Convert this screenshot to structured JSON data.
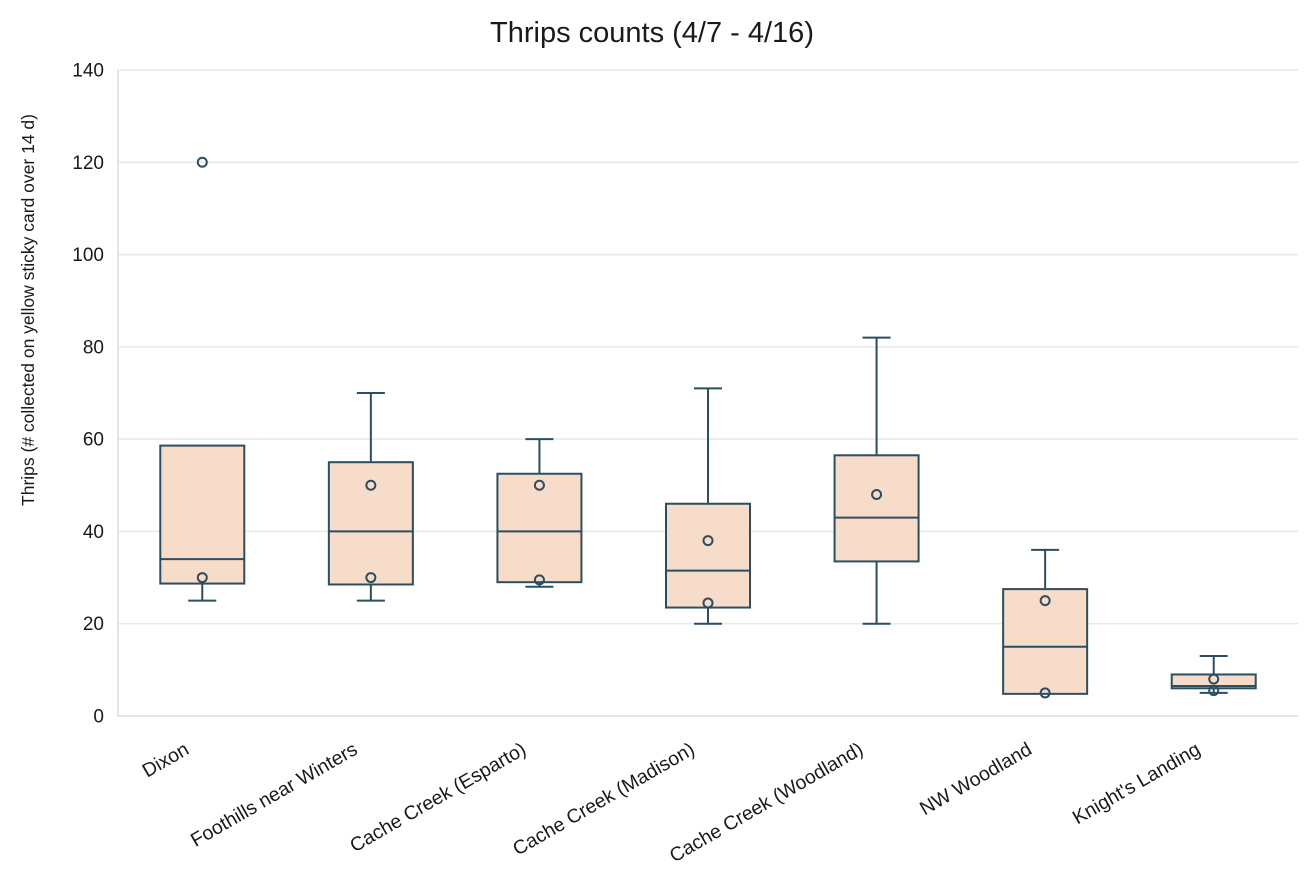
{
  "chart_data": {
    "type": "box",
    "title": "Thrips counts (4/7 - 4/16)",
    "ylabel": "Thrips (# collected on yellow sticky card over 14 d)",
    "xlabel": "",
    "ylim": [
      0,
      140
    ],
    "yticks": [
      0,
      20,
      40,
      60,
      80,
      100,
      120,
      140
    ],
    "grid": "horizontal",
    "legend": "none",
    "categories": [
      "Dixon",
      "Foothills near Winters",
      "Cache Creek (Esparto)",
      "Cache Creek (Madison)",
      "Cache Creek (Woodland)",
      "NW Woodland",
      "Knight's Landing"
    ],
    "boxes": [
      {
        "category": "Dixon",
        "whisker_low": 25,
        "q1": 28.7,
        "median": 34,
        "q3": 58.6,
        "whisker_high": 58.6,
        "outliers": [
          120
        ],
        "points": [
          30
        ]
      },
      {
        "category": "Foothills near Winters",
        "whisker_low": 25,
        "q1": 28.5,
        "median": 40,
        "q3": 55,
        "whisker_high": 70,
        "outliers": [],
        "points": [
          50,
          30
        ]
      },
      {
        "category": "Cache Creek (Esparto)",
        "whisker_low": 28,
        "q1": 29,
        "median": 40,
        "q3": 52.5,
        "whisker_high": 60,
        "outliers": [],
        "points": [
          50,
          29.5
        ]
      },
      {
        "category": "Cache Creek (Madison)",
        "whisker_low": 20,
        "q1": 23.5,
        "median": 31.5,
        "q3": 46,
        "whisker_high": 71,
        "outliers": [],
        "points": [
          38,
          24.5
        ]
      },
      {
        "category": "Cache Creek (Woodland)",
        "whisker_low": 20,
        "q1": 33.5,
        "median": 43,
        "q3": 56.5,
        "whisker_high": 82,
        "outliers": [],
        "points": [
          48
        ]
      },
      {
        "category": "NW Woodland",
        "whisker_low": 4.8,
        "q1": 4.8,
        "median": 15,
        "q3": 27.5,
        "whisker_high": 36,
        "outliers": [],
        "points": [
          25,
          5
        ]
      },
      {
        "category": "Knight's Landing",
        "whisker_low": 5,
        "q1": 6,
        "median": 6.5,
        "q3": 9,
        "whisker_high": 13,
        "outliers": [],
        "points": [
          8,
          5.5
        ]
      }
    ],
    "colors": {
      "box_fill": "#f8dcca",
      "box_stroke": "#2b4e60",
      "gridline": "#e8e8e8",
      "axis_line": "#dcdcdc",
      "text": "#1a1a1a"
    }
  }
}
